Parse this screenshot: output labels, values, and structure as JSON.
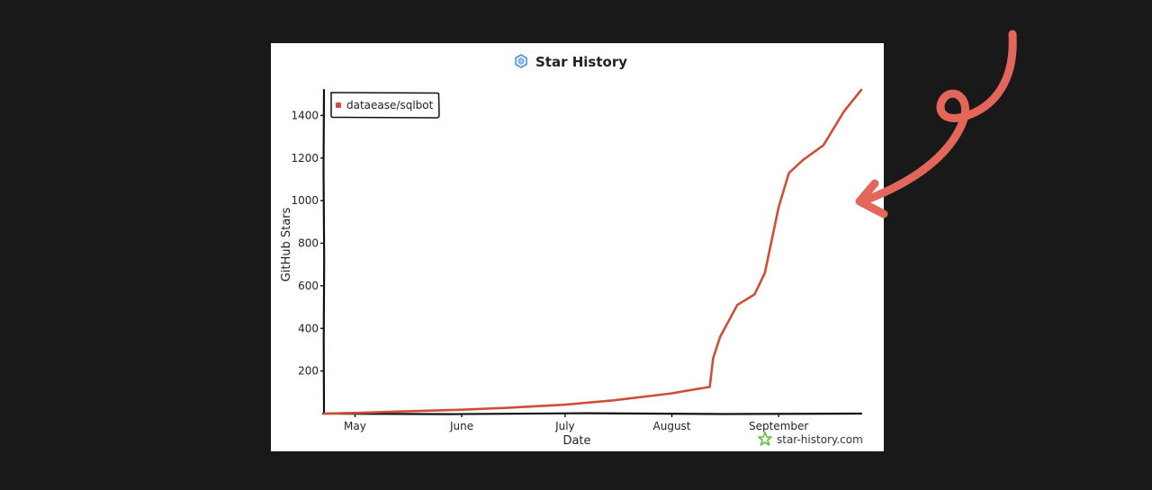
{
  "chart_data": {
    "type": "line",
    "title": "Star History",
    "xlabel": "Date",
    "ylabel": "GitHub Stars",
    "x_ticks": [
      "May",
      "June",
      "July",
      "August",
      "September"
    ],
    "y_ticks": [
      200,
      400,
      600,
      800,
      1000,
      1200,
      1400
    ],
    "ylim": [
      0,
      1520
    ],
    "xlim": [
      "2025-04-22",
      "2025-09-25"
    ],
    "grid": false,
    "legend_position": "top-left",
    "series": [
      {
        "name": "dataease/sqlbot",
        "color": "#cf4f36",
        "points": [
          [
            "2025-04-22",
            0
          ],
          [
            "2025-05-01",
            3
          ],
          [
            "2025-05-15",
            10
          ],
          [
            "2025-06-01",
            18
          ],
          [
            "2025-06-15",
            28
          ],
          [
            "2025-07-01",
            42
          ],
          [
            "2025-07-15",
            62
          ],
          [
            "2025-08-01",
            95
          ],
          [
            "2025-08-08",
            115
          ],
          [
            "2025-08-12",
            125
          ],
          [
            "2025-08-13",
            260
          ],
          [
            "2025-08-15",
            360
          ],
          [
            "2025-08-20",
            510
          ],
          [
            "2025-08-25",
            560
          ],
          [
            "2025-08-28",
            660
          ],
          [
            "2025-09-01",
            970
          ],
          [
            "2025-09-04",
            1130
          ],
          [
            "2025-09-08",
            1190
          ],
          [
            "2025-09-14",
            1260
          ],
          [
            "2025-09-20",
            1420
          ],
          [
            "2025-09-25",
            1520
          ]
        ]
      }
    ]
  },
  "watermark": "star-history.com",
  "colors": {
    "background": "#191919",
    "card": "#ffffff",
    "line": "#cf4f36",
    "annotation_arrow": "#e2665a",
    "logo_blue": "#4a90d9",
    "watermark_star": "#5fbf3a"
  }
}
